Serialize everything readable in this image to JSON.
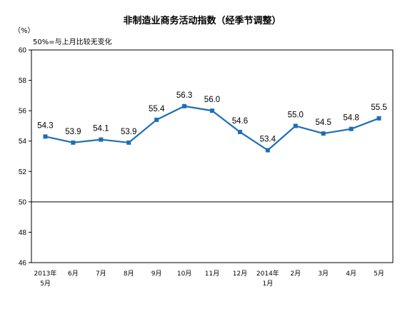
{
  "chart_data": {
    "type": "line",
    "title": "非制造业商务活动指数（经季节调整）",
    "unit_label": "（%）",
    "note": "50%=与上月比较无变化",
    "categories": [
      [
        "2013年",
        "5月"
      ],
      [
        "6月"
      ],
      [
        "7月"
      ],
      [
        "8月"
      ],
      [
        "9月"
      ],
      [
        "10月"
      ],
      [
        "11月"
      ],
      [
        "12月"
      ],
      [
        "2014年",
        "1月"
      ],
      [
        "2月"
      ],
      [
        "3月"
      ],
      [
        "4月"
      ],
      [
        "5月"
      ]
    ],
    "series": [
      {
        "values": [
          54.3,
          53.9,
          54.1,
          53.9,
          55.4,
          56.3,
          56.0,
          54.6,
          53.4,
          55.0,
          54.5,
          54.8,
          55.5
        ],
        "labels": [
          "54.3",
          "53.9",
          "54.1",
          "53.9",
          "55.4",
          "56.3",
          "56.0",
          "54.6",
          "53.4",
          "55.0",
          "54.5",
          "54.8",
          "55.5"
        ],
        "color": "#1f6eb4"
      }
    ],
    "ylim": [
      46,
      60
    ],
    "yticks": [
      {
        "value": 46,
        "label": "46"
      },
      {
        "value": 48,
        "label": "48"
      },
      {
        "value": 50,
        "label": "50"
      },
      {
        "value": 52,
        "label": "52"
      },
      {
        "value": 54,
        "label": "54"
      },
      {
        "value": 56,
        "label": "56"
      },
      {
        "value": 58,
        "label": "58"
      },
      {
        "value": 60,
        "label": "60"
      }
    ],
    "reference_line": 50,
    "grid": false,
    "legend": "none"
  }
}
